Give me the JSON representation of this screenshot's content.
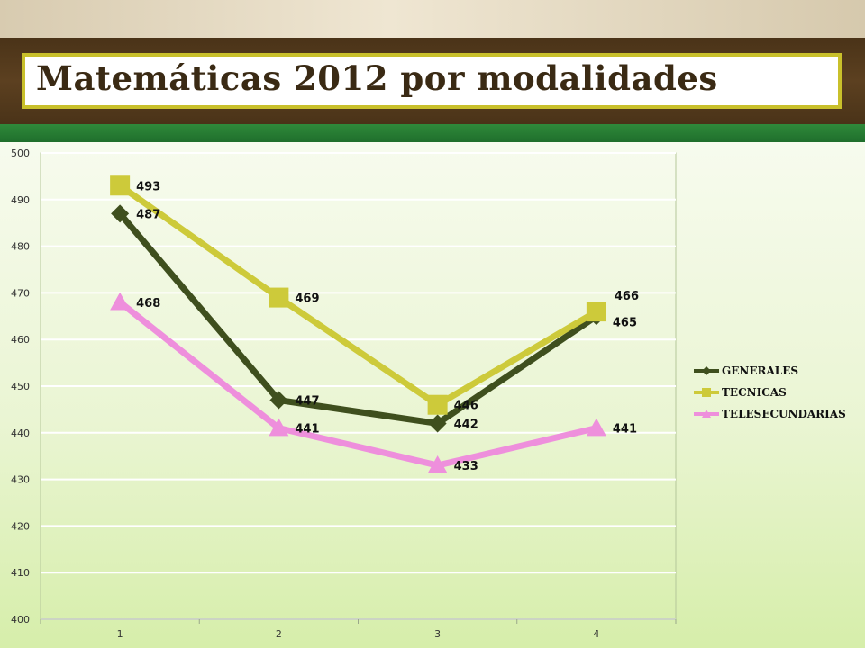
{
  "slide": {
    "title": "Matemáticas 2012 por modalidades"
  },
  "colors": {
    "header_brown": "#4a3318",
    "stripe_green": "#1f6e2c",
    "title_border": "#c9c02b"
  },
  "chart_data": {
    "type": "line",
    "title": "",
    "xlabel": "",
    "ylabel": "",
    "categories": [
      "1",
      "2",
      "3",
      "4"
    ],
    "ylim": [
      400,
      500
    ],
    "yticks": [
      400,
      410,
      420,
      430,
      440,
      450,
      460,
      470,
      480,
      490,
      500
    ],
    "grid": true,
    "legend_position": "right",
    "series": [
      {
        "name": "GENERALES",
        "values": [
          487,
          447,
          442,
          465
        ],
        "color": "#3f4f1e",
        "marker": "diamond"
      },
      {
        "name": "TECNICAS",
        "values": [
          493,
          469,
          446,
          466
        ],
        "color": "#cdca3a",
        "marker": "square"
      },
      {
        "name": "TELESECUNDARIAS",
        "values": [
          468,
          441,
          433,
          441
        ],
        "color": "#ee8fdc",
        "marker": "triangle"
      }
    ]
  }
}
